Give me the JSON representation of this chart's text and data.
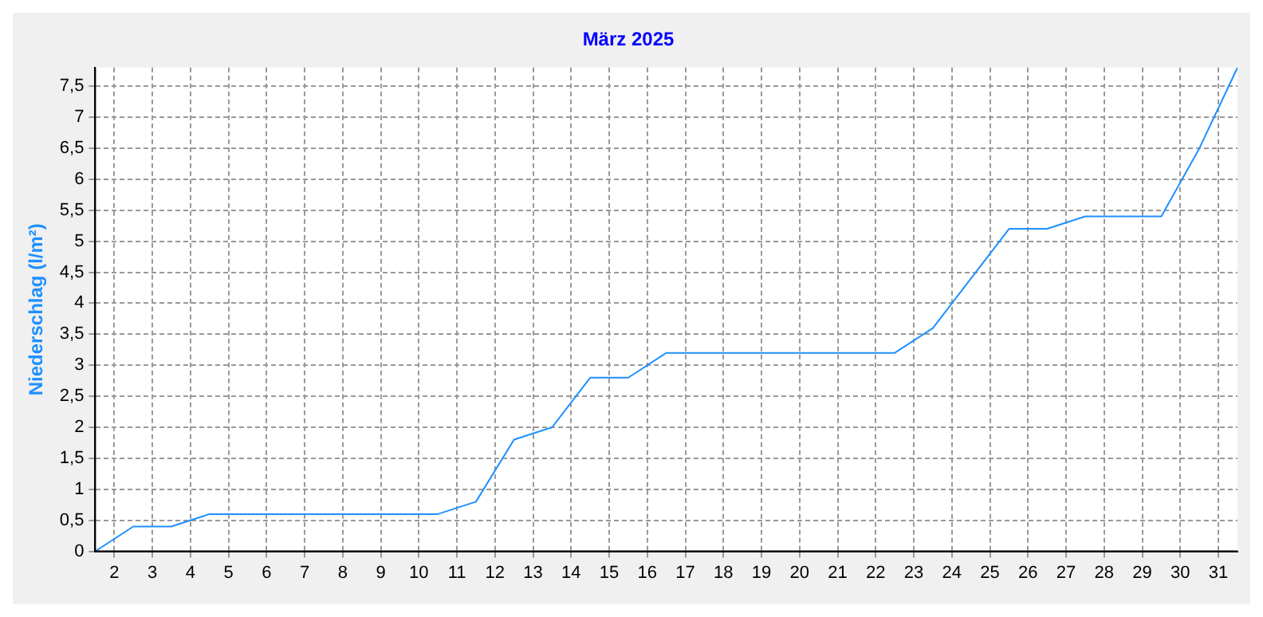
{
  "chart_data": {
    "type": "line",
    "title": "März 2025",
    "ylabel": "Niederschlag (l/m²)",
    "x": [
      1.5,
      2.5,
      3.5,
      4.5,
      10.5,
      11.5,
      12.5,
      13.5,
      14.5,
      15.5,
      16.5,
      22.5,
      23.5,
      25.5,
      26.5,
      27.5,
      29.5,
      30.5,
      31.5
    ],
    "series": [
      {
        "color": "#1e90ff",
        "values": [
          0,
          0.4,
          0.4,
          0.6,
          0.6,
          0.8,
          1.8,
          2.0,
          2.8,
          2.8,
          3.2,
          3.2,
          3.6,
          5.2,
          5.2,
          5.4,
          5.4,
          6.5,
          7.8
        ]
      }
    ],
    "xlim": [
      1.5,
      31.5
    ],
    "xticks": [
      2,
      3,
      4,
      5,
      6,
      7,
      8,
      9,
      10,
      11,
      12,
      13,
      14,
      15,
      16,
      17,
      18,
      19,
      20,
      21,
      22,
      23,
      24,
      25,
      26,
      27,
      28,
      29,
      30,
      31
    ],
    "ylim": [
      0,
      7.8
    ],
    "yticks": [
      0,
      {
        "value": 0.5,
        "label": "0,5"
      },
      1,
      {
        "value": 1.5,
        "label": "1,5"
      },
      2,
      {
        "value": 2.5,
        "label": "2,5"
      },
      3,
      {
        "value": 3.5,
        "label": "3,5"
      },
      4,
      {
        "value": 4.5,
        "label": "4,5"
      },
      5,
      {
        "value": 5.5,
        "label": "5,5"
      },
      6,
      {
        "value": 6.5,
        "label": "6,5"
      },
      7,
      {
        "value": 7.5,
        "label": "7,5"
      }
    ],
    "grid": true,
    "legend": false,
    "marker": "none",
    "line_style": "solid"
  }
}
